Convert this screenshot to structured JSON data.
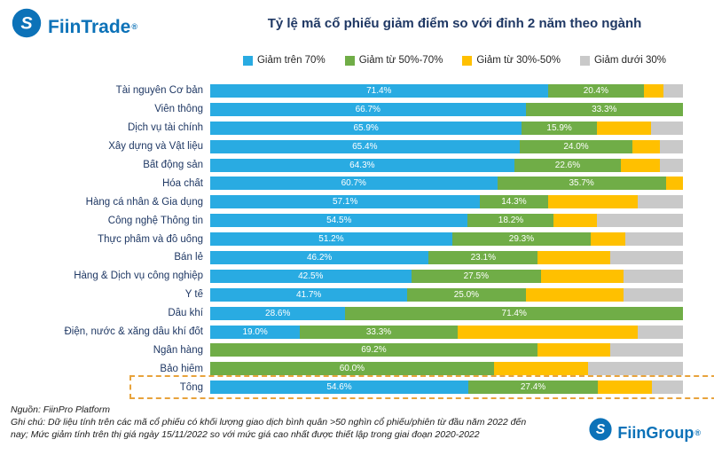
{
  "header": {
    "logo_text": "FiinTrade",
    "logo_reg": "®",
    "title": "Tỷ lệ mã cổ phiếu giảm điểm so với đỉnh 2 năm theo ngành"
  },
  "legend": [
    {
      "label": "Giảm trên 70%",
      "color": "#29ABE2"
    },
    {
      "label": "Giảm từ 50%-70%",
      "color": "#70AD47"
    },
    {
      "label": "Giảm từ 30%-50%",
      "color": "#FFC000"
    },
    {
      "label": "Giảm dưới 30%",
      "color": "#C9C9C9"
    }
  ],
  "chart_data": {
    "type": "bar",
    "orientation": "horizontal",
    "stacked": true,
    "unit": "%",
    "x_max": 100,
    "label_min_value": 13,
    "highlight_category": "Tổng",
    "categories": [
      "Tài nguyên Cơ bản",
      "Viễn thông",
      "Dịch vụ tài chính",
      "Xây dựng và Vật liệu",
      "Bất động sản",
      "Hóa chất",
      "Hàng cá nhân & Gia dụng",
      "Công nghệ Thông tin",
      "Thực phẩm và đồ uống",
      "Bán lẻ",
      "Hàng & Dịch vụ công nghiệp",
      "Y tế",
      "Dầu khí",
      "Điện, nước & xăng dầu khí đốt",
      "Ngân hàng",
      "Bảo hiểm",
      "Tổng"
    ],
    "series": [
      {
        "key": "over70",
        "name": "Giảm trên 70%",
        "color": "#29ABE2",
        "values": [
          71.4,
          66.7,
          65.9,
          65.4,
          64.3,
          60.7,
          57.1,
          54.5,
          51.2,
          46.2,
          42.5,
          41.7,
          28.6,
          19.0,
          0,
          0,
          54.6
        ]
      },
      {
        "key": "50to70",
        "name": "Giảm từ 50%-70%",
        "color": "#70AD47",
        "values": [
          20.4,
          33.3,
          15.9,
          24.0,
          22.6,
          35.7,
          14.3,
          18.2,
          29.3,
          23.1,
          27.5,
          25.0,
          71.4,
          33.3,
          69.2,
          60.0,
          27.4
        ]
      },
      {
        "key": "30to50",
        "name": "Giảm từ 30%-50%",
        "color": "#FFC000",
        "values": [
          4.1,
          0,
          11.4,
          5.8,
          8.3,
          3.6,
          19.0,
          9.1,
          7.3,
          15.4,
          17.5,
          20.8,
          0,
          38.1,
          15.4,
          20.0,
          11.4
        ]
      },
      {
        "key": "under30",
        "name": "Giảm dưới 30%",
        "color": "#C9C9C9",
        "values": [
          4.1,
          0,
          6.8,
          4.8,
          4.8,
          0,
          9.6,
          18.2,
          12.2,
          15.3,
          12.5,
          12.5,
          0,
          9.6,
          15.4,
          20.0,
          6.6
        ]
      }
    ]
  },
  "footer": {
    "source": "Nguồn: FiinPro Platform",
    "note": "Ghi chú: Dữ liệu tính trên các mã cổ phiếu có khối lượng giao dịch bình quân >50 nghìn cổ phiếu/phiên từ đầu năm 2022 đến nay; Mức giảm tính trên thị giá ngày 15/11/2022 so với mức giá cao nhất được thiết lập trong giai đoạn 2020-2022",
    "logo_text": "FiinGroup",
    "logo_reg": "®"
  }
}
